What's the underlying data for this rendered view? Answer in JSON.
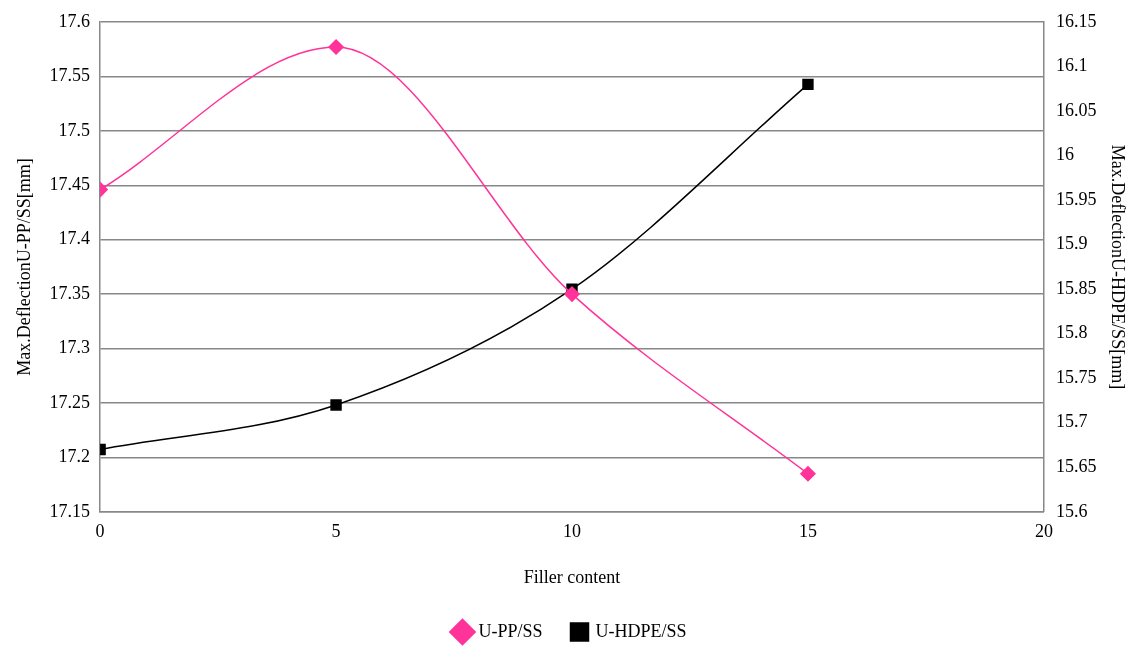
{
  "chart_data": {
    "type": "line",
    "xlabel": "Filler content",
    "ylabel": "Max.DeflectionU-PP/SS[mm]",
    "y2label": "Max.DeflectionU-HDPE/SS[mm]",
    "x": [
      0,
      5,
      10,
      15
    ],
    "series": [
      {
        "name": "U-PP/SS",
        "color": "#ff3399",
        "marker": "diamond",
        "values": [
          17.446,
          17.577,
          17.35,
          17.185
        ]
      },
      {
        "name": "U-HDPE/SS",
        "color": "#000000",
        "marker": "square",
        "axis": "y2",
        "values": [
          15.67,
          15.72,
          15.85,
          16.08
        ]
      }
    ],
    "xlim": [
      0,
      20
    ],
    "xticks": [
      0,
      5,
      10,
      15,
      20
    ],
    "ylim": [
      17.15,
      17.6
    ],
    "yticks": [
      17.15,
      17.2,
      17.25,
      17.3,
      17.35,
      17.4,
      17.45,
      17.5,
      17.55,
      17.6
    ],
    "y2lim": [
      15.6,
      16.15
    ],
    "y2ticks": [
      15.6,
      15.65,
      15.7,
      15.75,
      15.8,
      15.85,
      15.9,
      15.95,
      16,
      16.05,
      16.1,
      16.15
    ],
    "grid": "y",
    "legend": "bottom"
  }
}
